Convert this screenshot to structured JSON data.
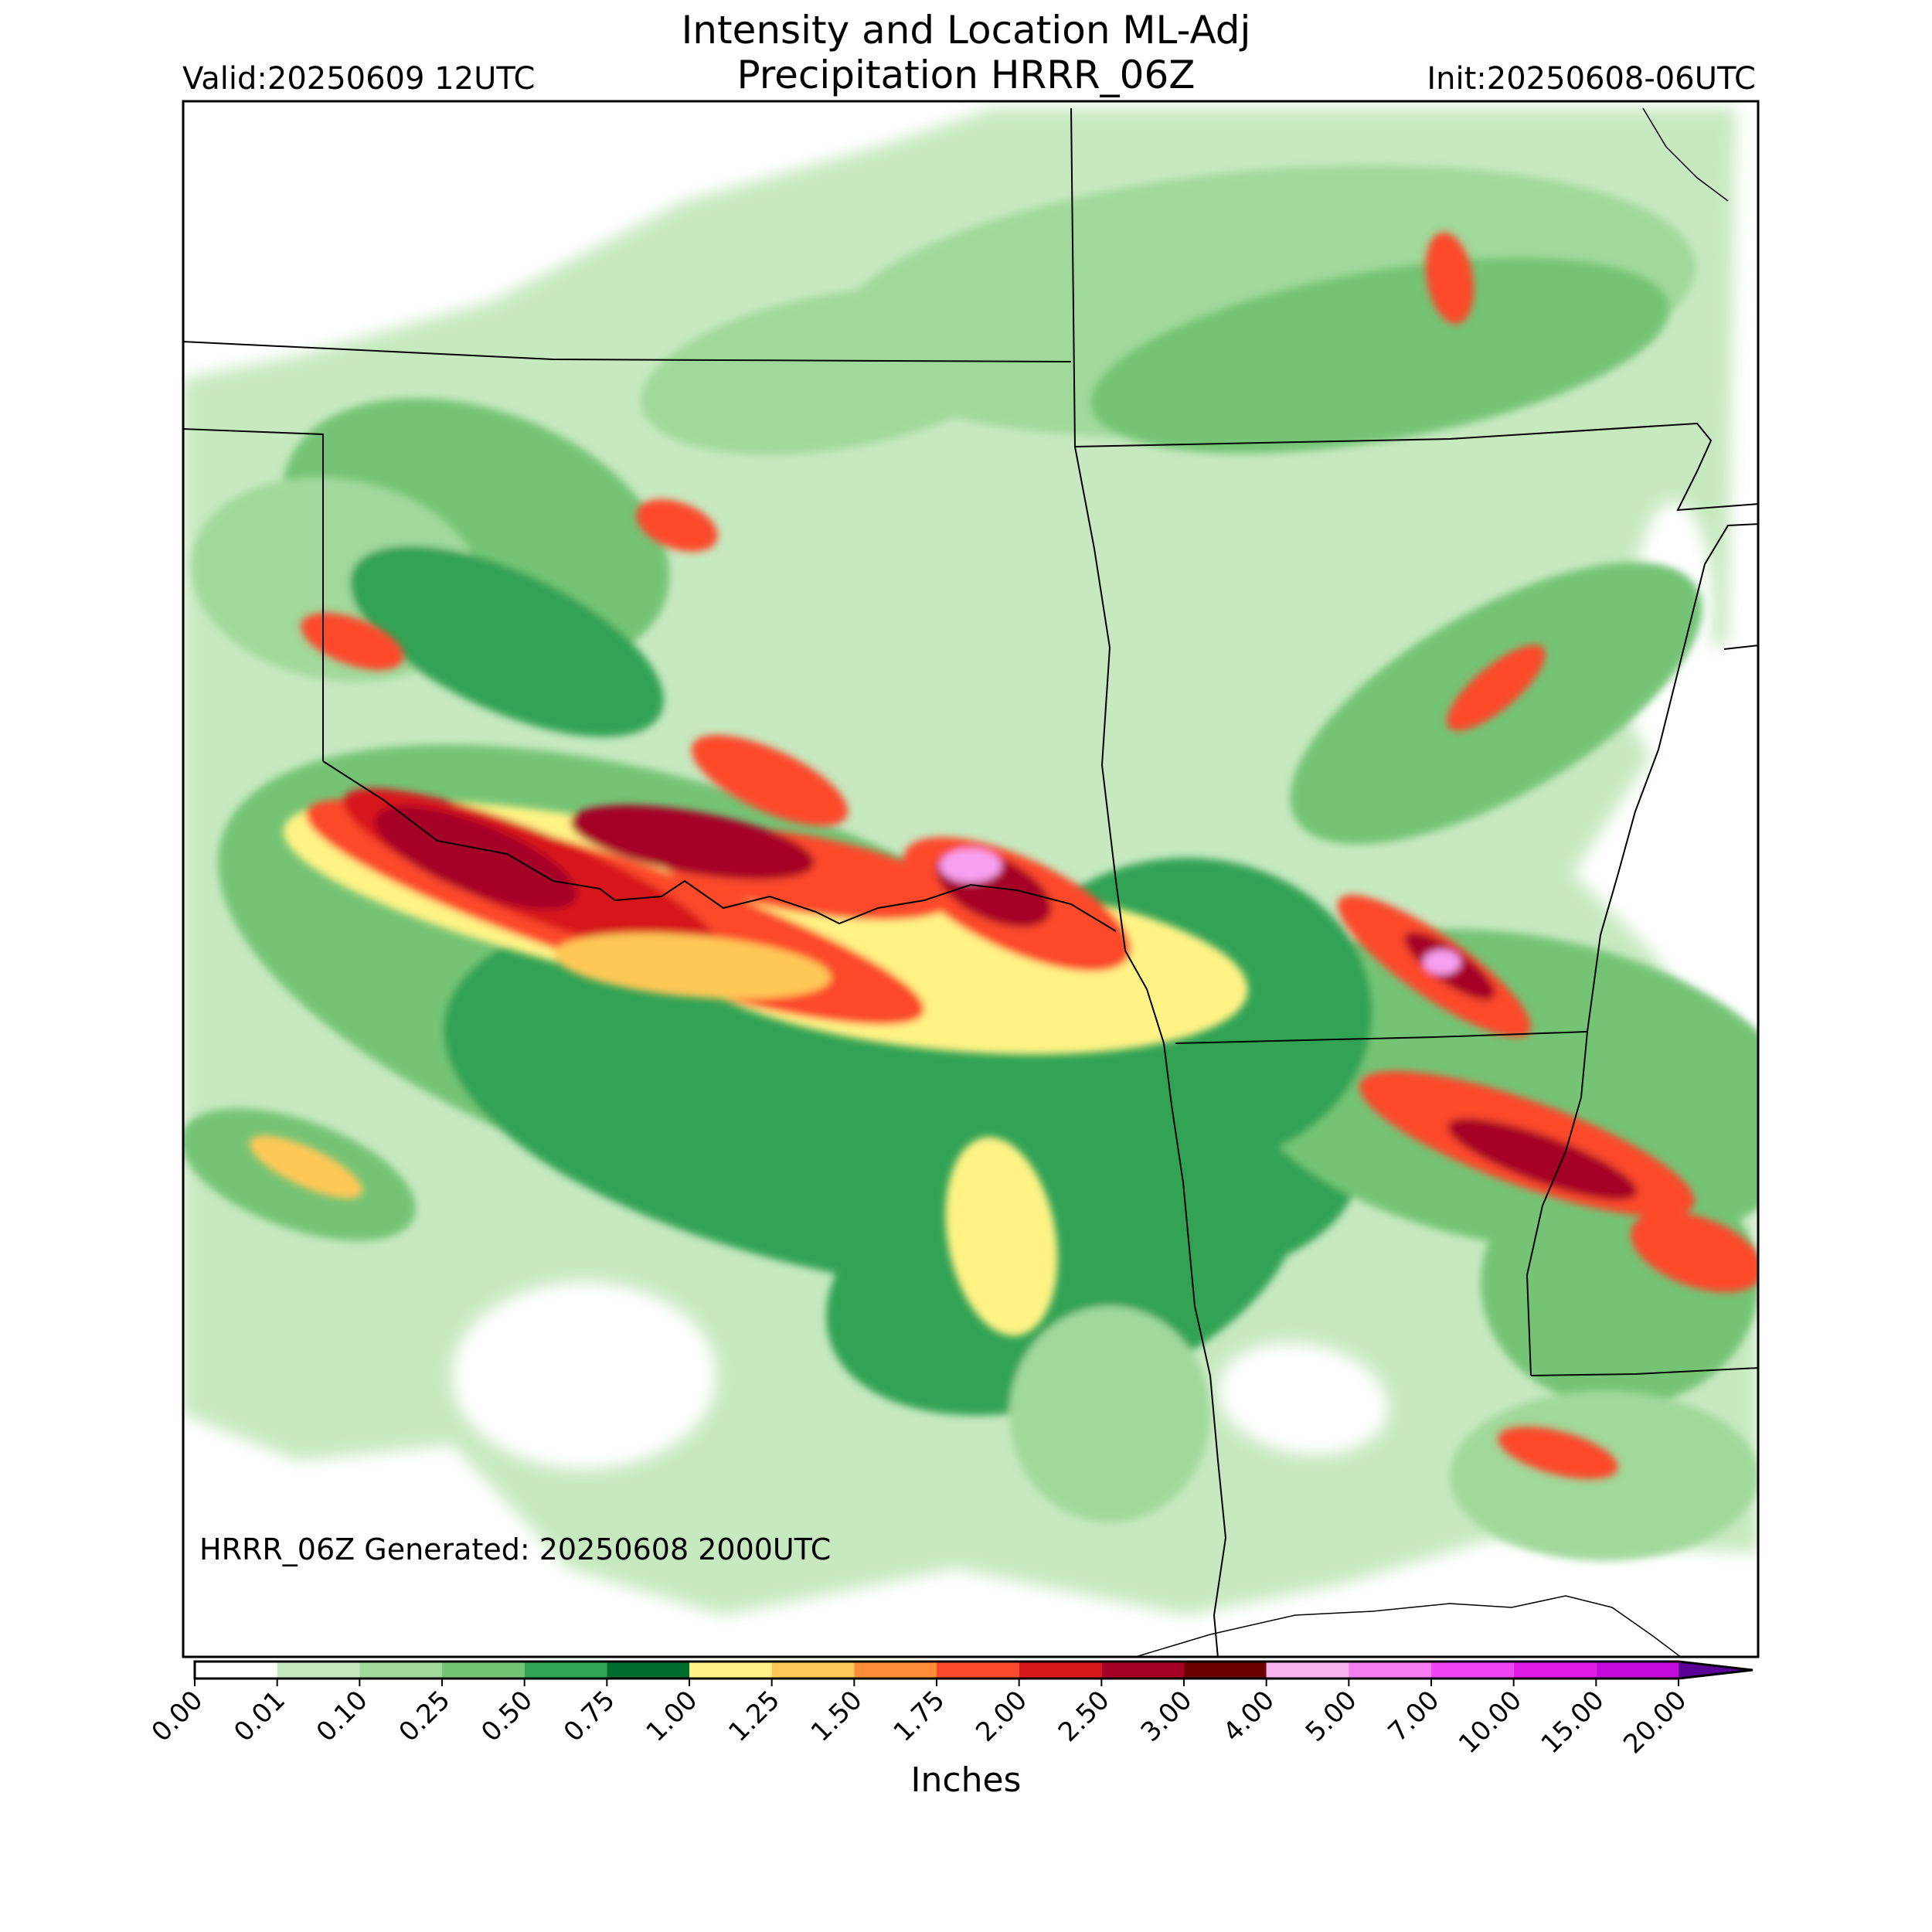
{
  "title": {
    "line1": "Intensity and Location ML-Adj",
    "line2": "Precipitation HRRR_06Z"
  },
  "valid": "Valid:20250609 12UTC",
  "init": "Init:20250608-06UTC",
  "generated": "HRRR_06Z Generated: 20250608 2000UTC",
  "colorbar": {
    "label": "Inches",
    "ticks": [
      "0.00",
      "0.01",
      "0.10",
      "0.25",
      "0.50",
      "0.75",
      "1.00",
      "1.25",
      "1.50",
      "1.75",
      "2.00",
      "2.50",
      "3.00",
      "4.00",
      "5.00",
      "7.00",
      "10.00",
      "15.00",
      "20.00"
    ],
    "colors": [
      "#ffffff",
      "#c7e9c0",
      "#a1d99b",
      "#74c476",
      "#31a354",
      "#006d2c",
      "#fff385",
      "#ffc857",
      "#ff8c38",
      "#fb4a2a",
      "#d7191c",
      "#a50026",
      "#6b0000",
      "#f7b2f0",
      "#f57df0",
      "#ef45f0",
      "#e11be6",
      "#c40ad8",
      "#8a00c8"
    ],
    "extend_color": "#5a0096"
  },
  "precip_colors": {
    "light": "#c7e9c0",
    "light2": "#a1d99b",
    "mid": "#74c476",
    "mid2": "#31a354",
    "dark": "#006d2c",
    "yellow": "#fff385",
    "gold": "#ffc857",
    "orange": "#ff8c38",
    "red": "#fb4a2a",
    "crimson": "#d7191c",
    "maroon": "#a50026",
    "darkmaroon": "#6b0000",
    "pink": "#f7a0f0"
  }
}
